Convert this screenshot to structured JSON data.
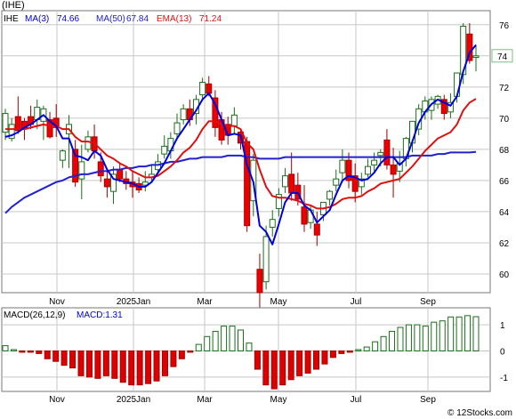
{
  "title": "(IHE)",
  "footer": "© 12Stocks.com",
  "colors": {
    "up": "#00aa00",
    "down": "#ee0000",
    "ma3": "#0000dd",
    "ma50": "#2222cc",
    "ema13": "#dd1111",
    "grid": "#c7c7c7",
    "frame": "#777777",
    "macd_hist": "#dd0000",
    "last_box": "#7fbf7f"
  },
  "legend": {
    "ticker": "IHE",
    "ma3": "MA(3)",
    "ma3_val": "74.66",
    "ma50": "MA(50)",
    "ma50_val": "67.84",
    "ema13": "EMA(13)",
    "ema13_val": "71.24",
    "last_price": "74"
  },
  "macd_legend": {
    "label": "MACD(26,12,9)",
    "value_label": "MACD:1.31"
  },
  "chart_data": [
    {
      "type": "candlestick",
      "title": "",
      "y_ticks": [
        60,
        62,
        64,
        66,
        68,
        70,
        72,
        74,
        76
      ],
      "ylim": [
        58.8,
        76.9
      ],
      "x_ticks": [
        "Nov",
        "2025Jan",
        "Mar",
        "May",
        "Jul",
        "Sep"
      ],
      "grid": true,
      "closes": [
        70.3,
        69.6,
        69.2,
        69.3,
        69.6,
        70.7,
        70.6,
        68.8,
        69.4,
        67.9,
        69.6,
        65.9,
        67.2,
        68.8,
        67.9,
        66.3,
        65.6,
        66.4,
        66.1,
        65.8,
        65.6,
        65.4,
        65.9,
        66.4,
        67.2,
        68.2,
        68.7,
        69.7,
        70.6,
        69.9,
        71.2,
        72.3,
        71.6,
        69.4,
        68.6,
        68.9,
        70.2,
        68.4,
        63.1,
        67.3,
        58.8,
        62.4,
        63.5,
        65.1,
        66.3,
        65.2,
        64.8,
        63.2,
        64.1,
        62.5,
        64.6,
        65.3,
        66.1,
        67.3,
        66.0,
        65.3,
        66.1,
        66.9,
        67.3,
        67.8,
        67.0,
        66.4,
        67.1,
        68.7,
        69.8,
        70.6,
        71.1,
        71.2,
        71.4,
        70.3,
        71.0,
        72.9,
        75.9,
        73.7,
        74.0
      ],
      "opens": [
        69.1,
        68.7,
        70.1,
        69.8,
        70.1,
        69.9,
        69.8,
        69.9,
        70.0,
        67.3,
        69.0,
        68.0,
        66.1,
        68.0,
        68.8,
        67.2,
        66.1,
        65.3,
        66.7,
        66.1,
        65.9,
        65.8,
        65.7,
        66.2,
        66.7,
        67.7,
        67.9,
        69.0,
        69.9,
        70.6,
        70.3,
        71.5,
        72.2,
        71.3,
        69.9,
        69.6,
        69.5,
        69.1,
        68.5,
        64.7,
        60.3,
        59.5,
        63.0,
        64.2,
        65.6,
        66.4,
        65.7,
        64.3,
        63.3,
        63.2,
        63.8,
        64.8,
        65.7,
        66.5,
        67.3,
        66.3,
        65.6,
        66.4,
        67.0,
        67.6,
        68.6,
        67.0,
        66.6,
        67.4,
        68.4,
        69.3,
        70.4,
        70.5,
        70.9,
        71.2,
        70.4,
        71.4,
        72.8,
        75.4,
        73.9
      ],
      "highs": [
        70.6,
        70.0,
        71.4,
        70.0,
        70.8,
        71.2,
        70.8,
        70.4,
        70.9,
        68.0,
        70.2,
        68.6,
        68.3,
        69.2,
        69.6,
        67.8,
        66.6,
        66.9,
        67.1,
        66.6,
        66.6,
        66.2,
        66.6,
        67.0,
        67.7,
        68.9,
        69.1,
        70.3,
        70.9,
        71.2,
        71.5,
        72.6,
        72.7,
        71.8,
        70.4,
        70.1,
        70.7,
        69.3,
        68.8,
        67.7,
        61.3,
        63.1,
        64.1,
        65.5,
        66.8,
        67.8,
        66.5,
        65.7,
        64.4,
        64.0,
        64.6,
        65.4,
        66.7,
        68.0,
        67.8,
        67.1,
        66.5,
        67.4,
        67.8,
        68.0,
        69.3,
        68.1,
        67.9,
        68.8,
        69.6,
        70.9,
        71.4,
        71.4,
        71.5,
        71.5,
        71.6,
        72.7,
        76.1,
        76.1,
        74.7
      ],
      "lows": [
        68.6,
        68.5,
        69.0,
        68.6,
        69.3,
        69.3,
        68.6,
        68.7,
        68.8,
        66.8,
        66.8,
        65.6,
        64.8,
        67.8,
        67.4,
        65.9,
        64.9,
        64.5,
        65.9,
        65.4,
        64.9,
        65.2,
        65.3,
        65.9,
        66.3,
        67.4,
        67.4,
        68.6,
        69.6,
        69.5,
        69.6,
        71.1,
        71.4,
        68.8,
        68.3,
        68.3,
        69.0,
        68.0,
        62.7,
        63.7,
        57.8,
        59.0,
        62.4,
        63.7,
        65.2,
        64.7,
        64.4,
        62.7,
        62.9,
        61.8,
        63.4,
        64.4,
        65.3,
        65.9,
        65.5,
        64.6,
        65.1,
        66.2,
        66.6,
        66.9,
        66.7,
        64.9,
        65.9,
        66.9,
        67.8,
        68.9,
        69.9,
        69.9,
        70.6,
        69.9,
        70.0,
        71.0,
        72.2,
        73.5,
        73.0
      ],
      "ma3": [
        68.8,
        68.9,
        69.1,
        69.4,
        69.6,
        69.9,
        70.2,
        69.8,
        69.5,
        68.7,
        68.7,
        67.6,
        67.5,
        67.3,
        67.9,
        67.6,
        66.7,
        66.1,
        66.0,
        65.9,
        65.8,
        65.6,
        65.6,
        65.9,
        66.5,
        67.1,
        67.9,
        68.7,
        69.3,
        69.9,
        70.5,
        71.2,
        71.6,
        70.9,
        69.9,
        68.9,
        69.0,
        68.9,
        67.0,
        65.9,
        63.1,
        62.7,
        61.9,
        63.2,
        64.6,
        65.2,
        65.2,
        64.4,
        64.1,
        63.3,
        63.7,
        64.1,
        65.1,
        66.0,
        66.3,
        66.2,
        66.0,
        66.1,
        66.5,
        67.1,
        67.5,
        67.5,
        67.0,
        67.4,
        68.5,
        69.7,
        70.4,
        70.9,
        71.2,
        71.0,
        70.8,
        71.4,
        73.0,
        74.2,
        74.7
      ],
      "ma50": [
        63.9,
        64.3,
        64.6,
        64.9,
        65.1,
        65.3,
        65.5,
        65.7,
        65.9,
        66.0,
        66.2,
        66.3,
        66.4,
        66.4,
        66.5,
        66.6,
        66.6,
        66.7,
        66.7,
        66.8,
        66.8,
        66.9,
        66.9,
        67.0,
        67.0,
        67.1,
        67.2,
        67.2,
        67.3,
        67.4,
        67.4,
        67.5,
        67.5,
        67.5,
        67.5,
        67.6,
        67.6,
        67.6,
        67.5,
        67.5,
        67.4,
        67.4,
        67.4,
        67.4,
        67.5,
        67.5,
        67.5,
        67.5,
        67.5,
        67.5,
        67.5,
        67.5,
        67.5,
        67.5,
        67.5,
        67.5,
        67.5,
        67.5,
        67.5,
        67.5,
        67.5,
        67.5,
        67.5,
        67.5,
        67.6,
        67.6,
        67.6,
        67.6,
        67.7,
        67.7,
        67.8,
        67.8,
        67.8,
        67.8,
        67.84
      ],
      "ema13": [
        69.3,
        69.3,
        69.3,
        69.3,
        69.4,
        69.5,
        69.6,
        69.5,
        69.5,
        69.3,
        69.3,
        68.8,
        68.5,
        68.5,
        68.4,
        68.0,
        67.6,
        67.4,
        67.1,
        66.9,
        66.6,
        66.4,
        66.2,
        66.2,
        66.3,
        66.6,
        66.9,
        67.3,
        67.8,
        68.1,
        68.6,
        69.3,
        69.8,
        69.8,
        69.6,
        69.5,
        69.5,
        69.3,
        68.4,
        68.0,
        66.7,
        65.6,
        65.0,
        64.9,
        64.9,
        64.8,
        64.7,
        64.5,
        64.4,
        64.2,
        64.2,
        64.3,
        64.5,
        64.8,
        64.9,
        64.9,
        65.0,
        65.3,
        65.5,
        65.8,
        65.9,
        66.0,
        66.1,
        66.5,
        66.9,
        67.4,
        67.9,
        68.3,
        68.7,
        68.9,
        69.1,
        69.6,
        70.5,
        71.0,
        71.24
      ]
    },
    {
      "type": "bar",
      "title": "",
      "y_ticks": [
        -1,
        0,
        1
      ],
      "ylim": [
        -1.55,
        1.65
      ],
      "x_ticks": [
        "Nov",
        "2025Jan",
        "Mar",
        "May",
        "Jul",
        "Sep"
      ],
      "values": [
        0.2,
        0.05,
        -0.05,
        -0.05,
        -0.1,
        -0.3,
        -0.4,
        -0.55,
        -0.65,
        -0.95,
        -1.0,
        -1.05,
        -0.95,
        -1.05,
        -1.2,
        -1.3,
        -1.3,
        -1.25,
        -1.15,
        -0.95,
        -0.6,
        -0.3,
        -0.05,
        0.25,
        0.55,
        0.75,
        0.95,
        0.95,
        0.8,
        0.3,
        -0.7,
        -1.3,
        -1.45,
        -1.3,
        -1.1,
        -0.95,
        -0.85,
        -0.7,
        -0.5,
        -0.25,
        -0.1,
        -0.05,
        0.05,
        0.15,
        0.35,
        0.55,
        0.75,
        0.9,
        1.0,
        1.0,
        0.95,
        1.1,
        1.15,
        1.3,
        1.3,
        1.35,
        1.31
      ]
    }
  ]
}
